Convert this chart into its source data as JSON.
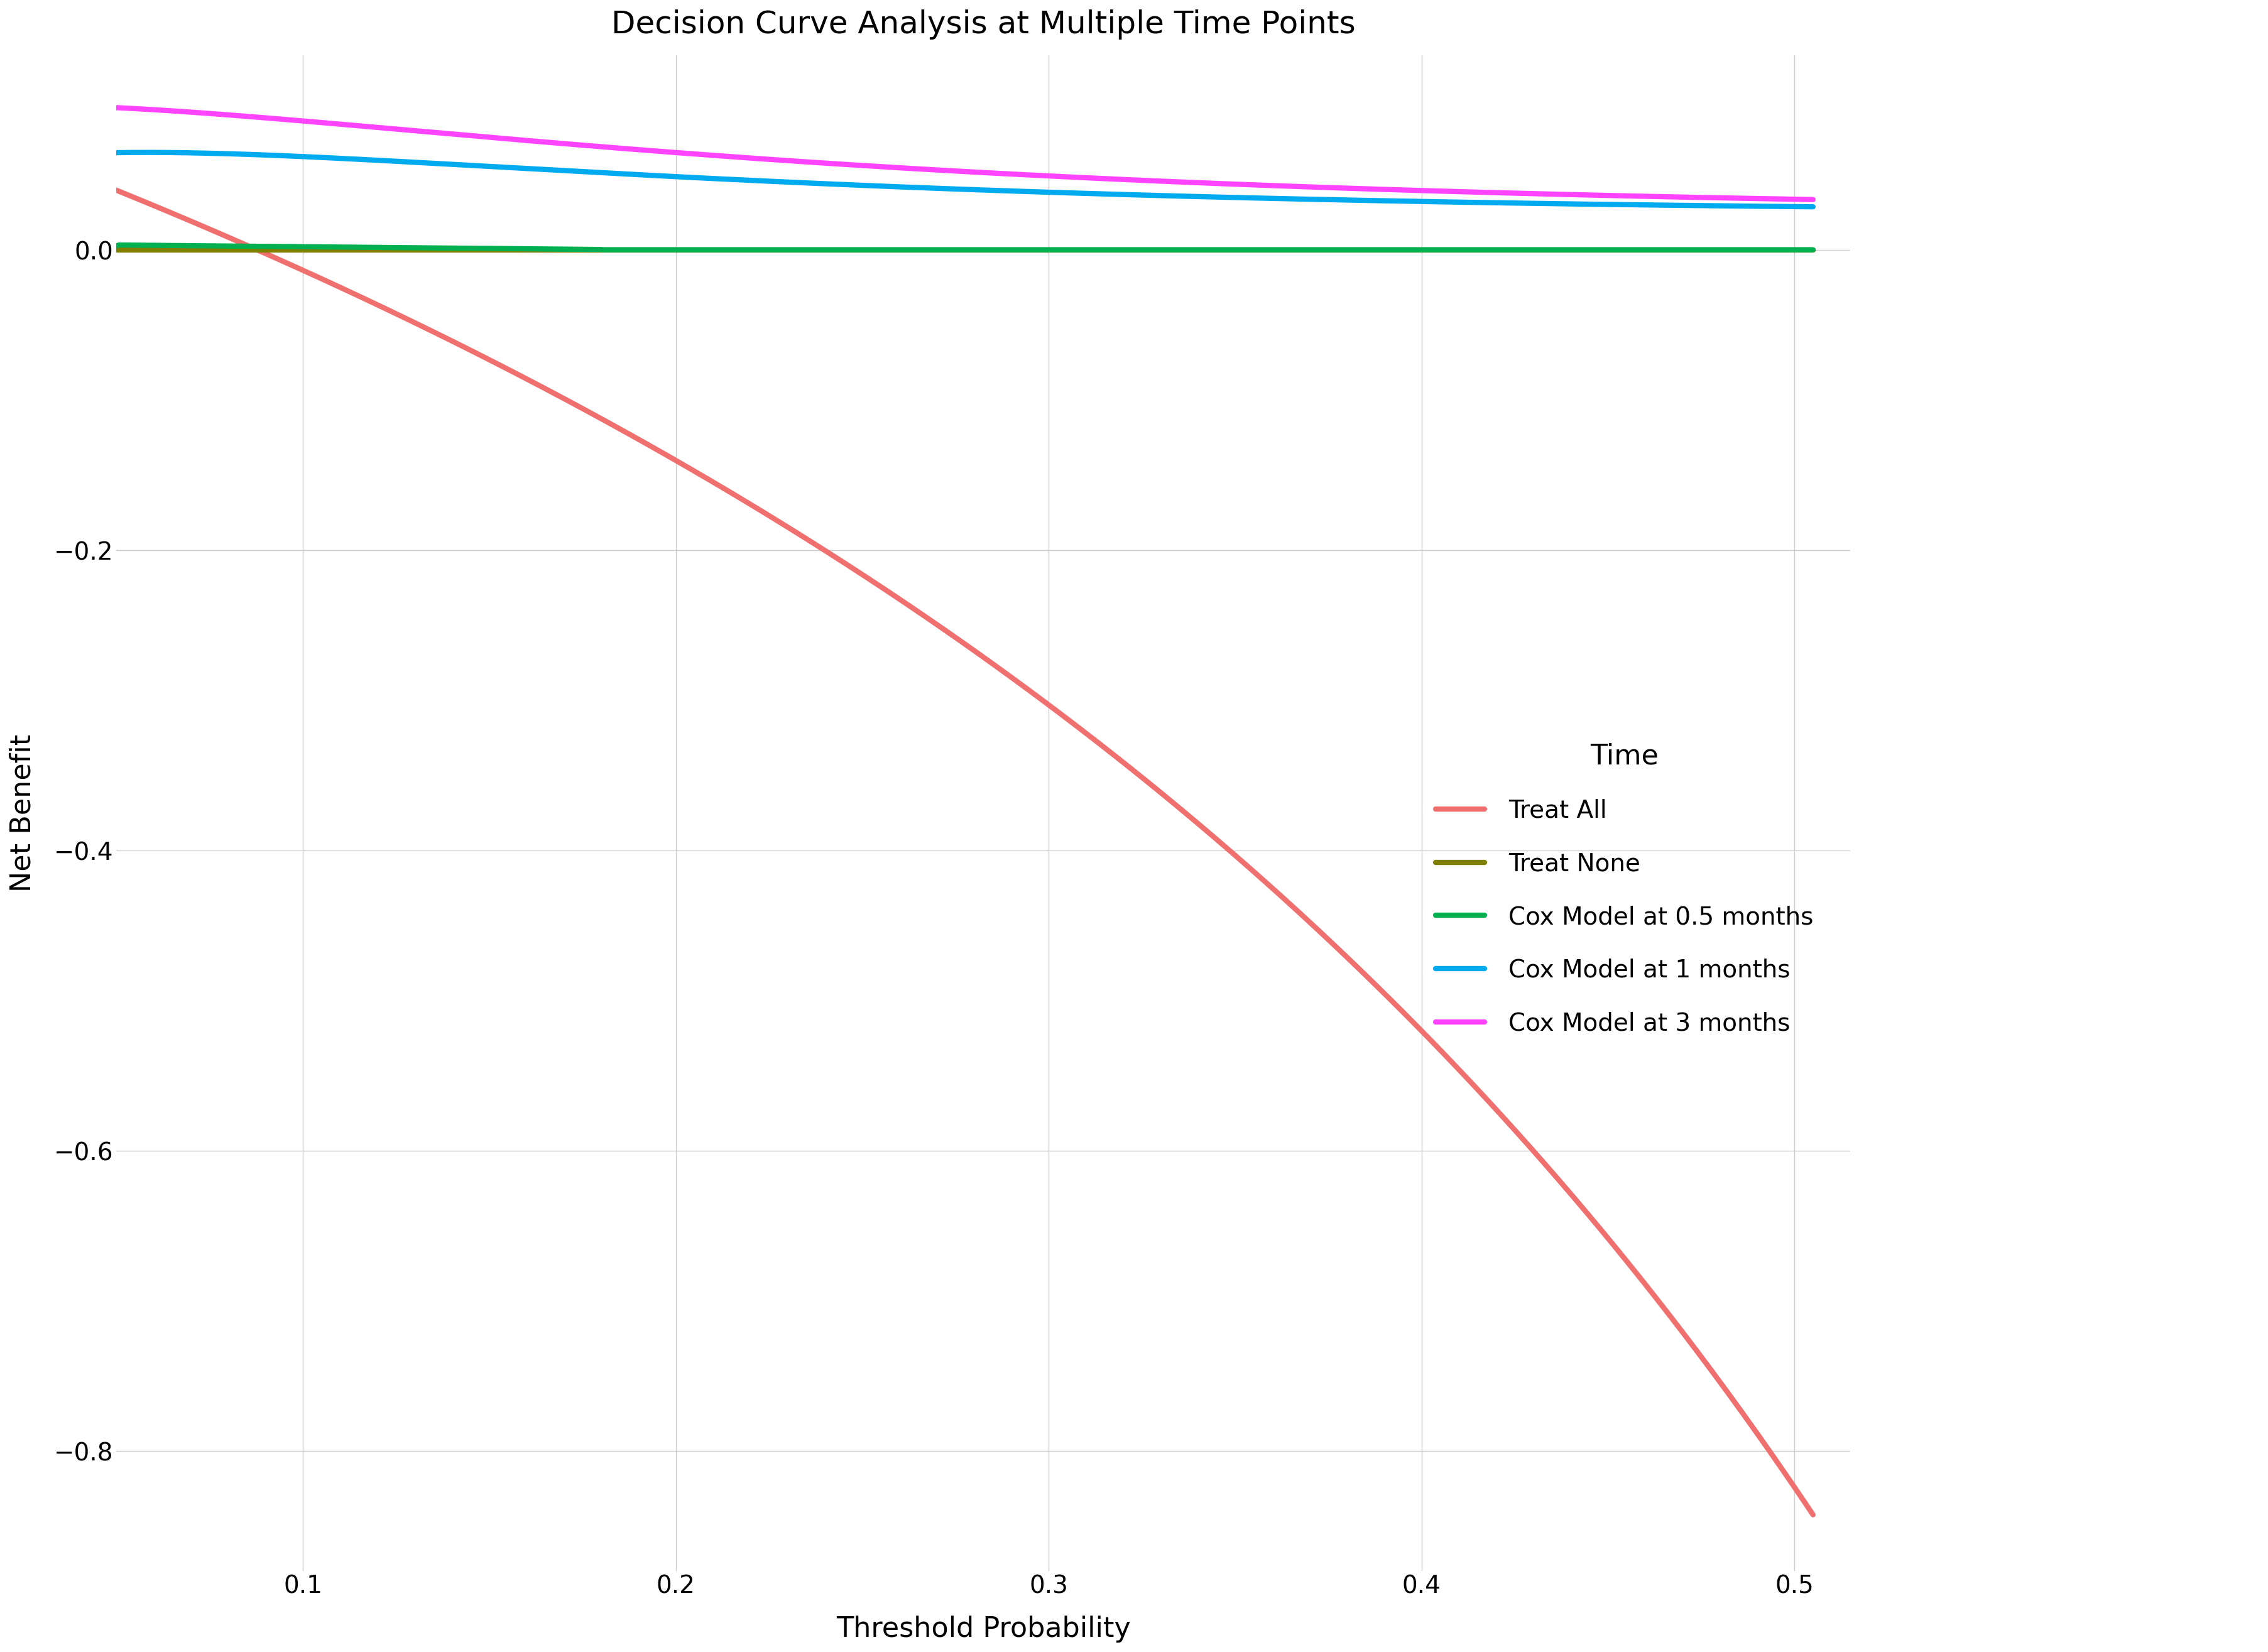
{
  "title": "Decision Curve Analysis at Multiple Time Points",
  "xlabel": "Threshold Probability",
  "ylabel": "Net Benefit",
  "legend_title": "Time",
  "xlim": [
    0.05,
    0.515
  ],
  "ylim": [
    -0.88,
    0.13
  ],
  "xticks": [
    0.1,
    0.2,
    0.3,
    0.4,
    0.5
  ],
  "yticks": [
    0.0,
    -0.2,
    -0.4,
    -0.6,
    -0.8
  ],
  "background_color": "#ffffff",
  "grid_color": "#cccccc",
  "title_fontsize": 36,
  "axis_label_fontsize": 32,
  "tick_fontsize": 28,
  "legend_fontsize": 28,
  "legend_title_fontsize": 32,
  "line_width": 6.0,
  "series": [
    {
      "label": "Treat All",
      "color": "#F07070",
      "type": "treat_all"
    },
    {
      "label": "Treat None",
      "color": "#808000",
      "type": "treat_none"
    },
    {
      "label": "Cox Model at 0.5 months",
      "color": "#00B050",
      "type": "cox_05"
    },
    {
      "label": "Cox Model at 1 months",
      "color": "#00AAEE",
      "type": "cox_1"
    },
    {
      "label": "Cox Model at 3 months",
      "color": "#FF44FF",
      "type": "cox_3"
    }
  ]
}
